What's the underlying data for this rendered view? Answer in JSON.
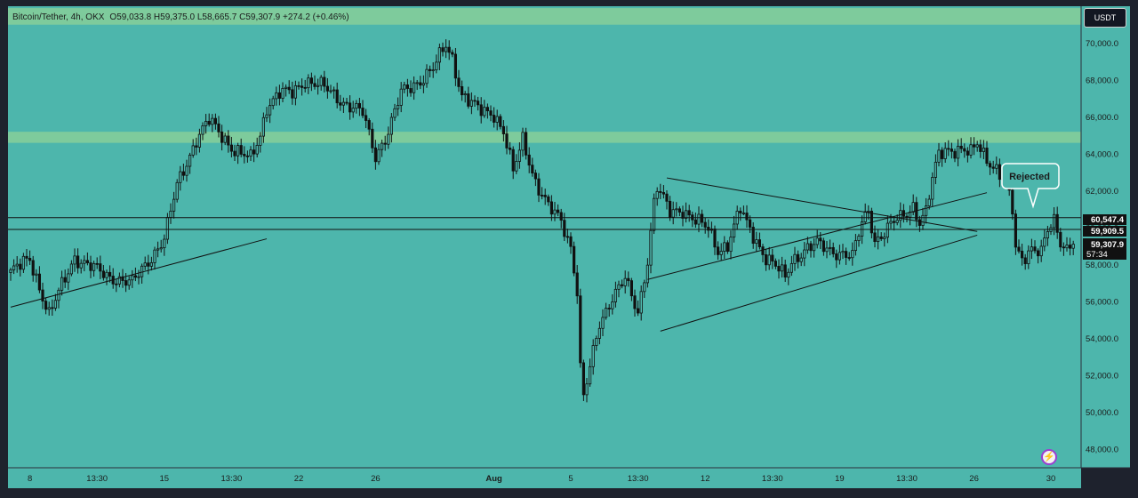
{
  "header": {
    "symbol": "Bitcoin/Tether",
    "interval": "4h",
    "exchange": "OKX",
    "ohlc_text": "O59,033.8  H59,375.0  L58,665.7  C59,307.9  +274.2 (+0.46%)"
  },
  "currency_button": "USDT",
  "annotation": {
    "text": "Rejected"
  },
  "price_tags": {
    "level_upper": "60,547.4",
    "level_lower": "59,909.5",
    "last_price": "59,307.9",
    "countdown": "57:34"
  },
  "colors": {
    "background": "#4db6ac",
    "zone": "#7ecb9c",
    "candle": "#111111",
    "frame": "#1e222d"
  },
  "icons": {
    "bolt": "lightning-icon"
  },
  "chart_data": {
    "type": "candlestick",
    "title": "Bitcoin/Tether, 4h, OKX",
    "ylim": [
      47000,
      72000
    ],
    "y_ticks": [
      48000,
      50000,
      52000,
      54000,
      56000,
      58000,
      60000,
      62000,
      64000,
      66000,
      68000,
      70000
    ],
    "y_tick_labels": [
      "48,000.0",
      "50,000.0",
      "52,000.0",
      "54,000.0",
      "56,000.0",
      "58,000.0",
      "60,000.0",
      "62,000.0",
      "64,000.0",
      "66,000.0",
      "68,000.0",
      "70,000.0"
    ],
    "x_ticks": [
      {
        "label": "8",
        "i": 6
      },
      {
        "label": "13:30",
        "i": 27
      },
      {
        "label": "15",
        "i": 48
      },
      {
        "label": "13:30",
        "i": 69
      },
      {
        "label": "22",
        "i": 90
      },
      {
        "label": "26",
        "i": 114
      },
      {
        "label": "Aug",
        "i": 151
      },
      {
        "label": "5",
        "i": 175
      },
      {
        "label": "13:30",
        "i": 196
      },
      {
        "label": "12",
        "i": 217
      },
      {
        "label": "13:30",
        "i": 238
      },
      {
        "label": "19",
        "i": 259
      },
      {
        "label": "13:30",
        "i": 280
      },
      {
        "label": "26",
        "i": 301
      },
      {
        "label": "30",
        "i": 325
      }
    ],
    "horizontal_levels": [
      60547.4,
      59909.5
    ],
    "zones": [
      [
        71000,
        71900
      ],
      [
        64600,
        65200
      ]
    ],
    "trendlines": [
      {
        "from": [
          0,
          55700
        ],
        "to": [
          80,
          59400
        ]
      },
      {
        "from": [
          199,
          57200
        ],
        "to": [
          305,
          61900
        ]
      },
      {
        "from": [
          203,
          54400
        ],
        "to": [
          302,
          59600
        ]
      },
      {
        "from": [
          205,
          62700
        ],
        "to": [
          302,
          59800
        ]
      }
    ],
    "price_path": [
      [
        0,
        57600
      ],
      [
        6,
        58300
      ],
      [
        12,
        55300
      ],
      [
        20,
        58400
      ],
      [
        30,
        57400
      ],
      [
        38,
        57000
      ],
      [
        48,
        59400
      ],
      [
        52,
        62300
      ],
      [
        58,
        64800
      ],
      [
        62,
        65800
      ],
      [
        70,
        64200
      ],
      [
        75,
        63700
      ],
      [
        78,
        65000
      ],
      [
        80,
        66600
      ],
      [
        84,
        67300
      ],
      [
        88,
        67300
      ],
      [
        92,
        68000
      ],
      [
        98,
        67600
      ],
      [
        104,
        66800
      ],
      [
        110,
        66200
      ],
      [
        114,
        63900
      ],
      [
        118,
        65200
      ],
      [
        122,
        67300
      ],
      [
        128,
        68000
      ],
      [
        132,
        68600
      ],
      [
        136,
        69900
      ],
      [
        138,
        69200
      ],
      [
        141,
        67200
      ],
      [
        146,
        66400
      ],
      [
        151,
        66200
      ],
      [
        154,
        65200
      ],
      [
        157,
        63000
      ],
      [
        160,
        64800
      ],
      [
        164,
        62500
      ],
      [
        168,
        61100
      ],
      [
        172,
        60400
      ],
      [
        175,
        59000
      ],
      [
        177,
        56600
      ],
      [
        178,
        52400
      ],
      [
        179,
        50800
      ],
      [
        181,
        52400
      ],
      [
        184,
        54800
      ],
      [
        188,
        56300
      ],
      [
        192,
        57200
      ],
      [
        194,
        56200
      ],
      [
        196,
        55400
      ],
      [
        199,
        58300
      ],
      [
        201,
        61400
      ],
      [
        202,
        62200
      ],
      [
        206,
        60800
      ],
      [
        210,
        61000
      ],
      [
        214,
        60400
      ],
      [
        218,
        59900
      ],
      [
        221,
        58800
      ],
      [
        224,
        59100
      ],
      [
        228,
        61000
      ],
      [
        230,
        60200
      ],
      [
        233,
        59300
      ],
      [
        236,
        58400
      ],
      [
        239,
        57900
      ],
      [
        242,
        57300
      ],
      [
        244,
        58200
      ],
      [
        248,
        58800
      ],
      [
        252,
        59100
      ],
      [
        256,
        58800
      ],
      [
        260,
        58600
      ],
      [
        263,
        58400
      ],
      [
        266,
        60300
      ],
      [
        268,
        61000
      ],
      [
        270,
        59300
      ],
      [
        273,
        59700
      ],
      [
        276,
        60300
      ],
      [
        279,
        60700
      ],
      [
        282,
        61200
      ],
      [
        284,
        60300
      ],
      [
        286,
        60800
      ],
      [
        288,
        62600
      ],
      [
        290,
        64000
      ],
      [
        292,
        64300
      ],
      [
        296,
        64200
      ],
      [
        300,
        64000
      ],
      [
        302,
        64600
      ],
      [
        305,
        63800
      ],
      [
        308,
        63100
      ],
      [
        311,
        62300
      ],
      [
        313,
        61000
      ],
      [
        314,
        58900
      ],
      [
        316,
        58400
      ],
      [
        319,
        58900
      ],
      [
        322,
        58600
      ],
      [
        324,
        59800
      ],
      [
        326,
        60400
      ],
      [
        328,
        59300
      ],
      [
        330,
        58900
      ],
      [
        332,
        59300
      ]
    ]
  }
}
